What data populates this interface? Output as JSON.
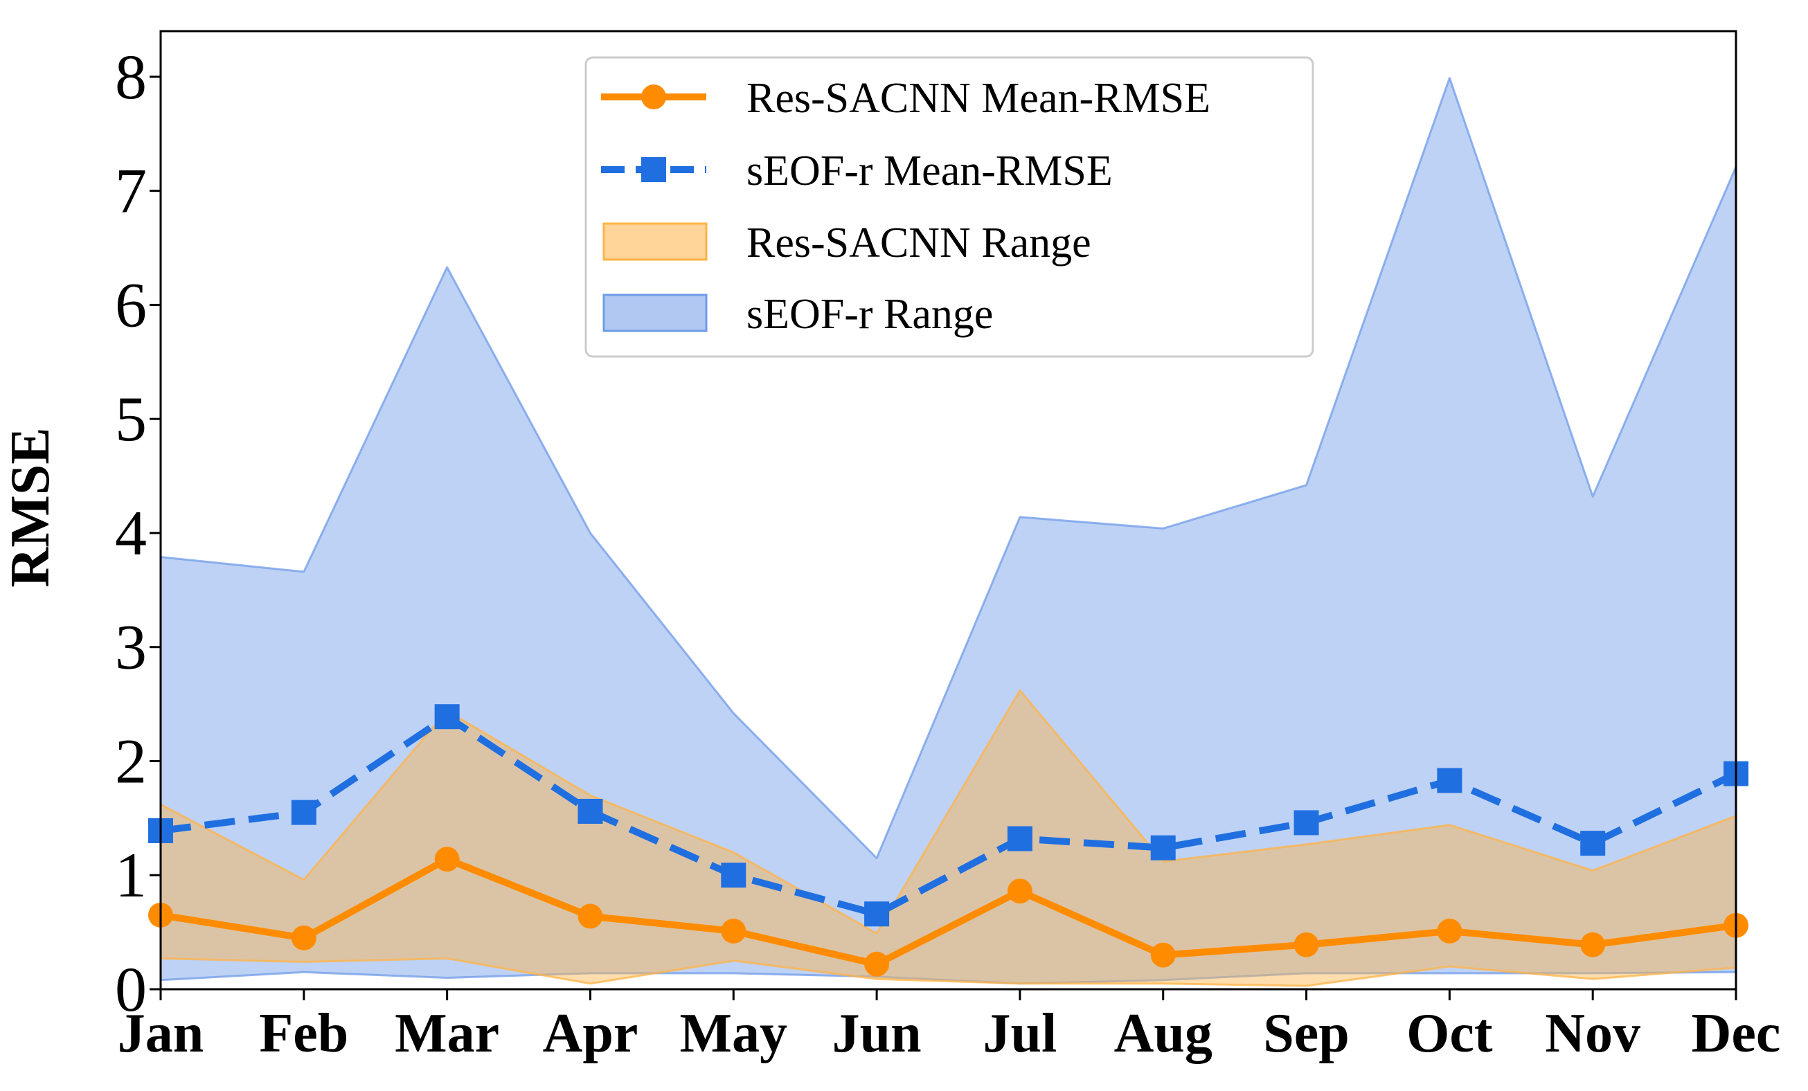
{
  "chart_data": {
    "type": "line",
    "title": "",
    "xlabel": "",
    "ylabel": "RMSE",
    "ylim": [
      0,
      8.4
    ],
    "yticks": [
      0,
      1,
      2,
      3,
      4,
      5,
      6,
      7,
      8
    ],
    "grid": false,
    "legend_position": "top-center",
    "categories": [
      "Jan",
      "Feb",
      "Mar",
      "Apr",
      "May",
      "Jun",
      "Jul",
      "Aug",
      "Sep",
      "Oct",
      "Nov",
      "Dec"
    ],
    "series": [
      {
        "name": "Res-SACNN Mean-RMSE",
        "kind": "line",
        "marker": "circle",
        "linestyle": "solid",
        "color": "#ff8c00",
        "values": [
          0.65,
          0.45,
          1.14,
          0.64,
          0.51,
          0.22,
          0.86,
          0.3,
          0.39,
          0.51,
          0.39,
          0.56
        ]
      },
      {
        "name": "sEOF-r Mean-RMSE",
        "kind": "line",
        "marker": "square",
        "linestyle": "dashed",
        "color": "#1f6fe0",
        "values": [
          1.39,
          1.55,
          2.39,
          1.56,
          1.0,
          0.66,
          1.32,
          1.24,
          1.46,
          1.83,
          1.28,
          1.89
        ]
      },
      {
        "name": "Res-SACNN Range",
        "kind": "band",
        "color": "#ffb347",
        "lower": [
          0.27,
          0.24,
          0.27,
          0.05,
          0.25,
          0.09,
          0.05,
          0.05,
          0.03,
          0.2,
          0.09,
          0.19
        ],
        "upper": [
          1.62,
          0.96,
          2.44,
          1.7,
          1.2,
          0.49,
          2.62,
          1.12,
          1.27,
          1.44,
          1.04,
          1.52
        ]
      },
      {
        "name": "sEOF-r Range",
        "kind": "band",
        "color": "#6f9be8",
        "lower": [
          0.08,
          0.15,
          0.1,
          0.14,
          0.14,
          0.11,
          0.05,
          0.08,
          0.14,
          0.14,
          0.14,
          0.15
        ],
        "upper": [
          3.79,
          3.66,
          6.33,
          4.0,
          2.42,
          1.15,
          4.14,
          4.04,
          4.42,
          7.99,
          4.32,
          7.21
        ]
      }
    ]
  }
}
